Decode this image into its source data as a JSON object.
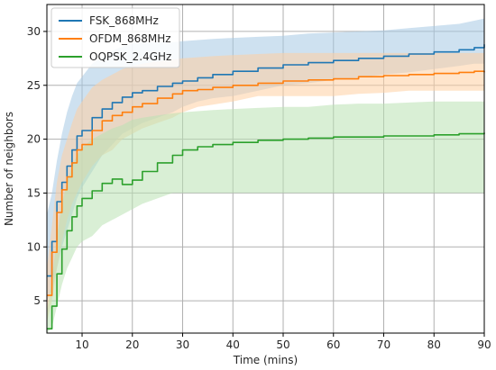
{
  "chart_data": {
    "type": "line",
    "xlabel": "Time (mins)",
    "ylabel": "Number of neighbors",
    "xlim": [
      3,
      90
    ],
    "ylim": [
      2,
      32.5
    ],
    "xticks": [
      10,
      20,
      30,
      40,
      50,
      60,
      70,
      80,
      90
    ],
    "yticks": [
      5,
      10,
      15,
      20,
      25,
      30
    ],
    "grid": true,
    "legend_position": "upper-left",
    "series": [
      {
        "name": "FSK_868MHz",
        "color": "#1f77b4",
        "band_color": "#a6c8e4",
        "x": [
          3,
          4,
          5,
          6,
          7,
          8,
          9,
          10,
          12,
          14,
          16,
          18,
          20,
          22,
          25,
          28,
          30,
          33,
          36,
          40,
          45,
          50,
          55,
          60,
          65,
          70,
          75,
          80,
          85,
          88,
          90
        ],
        "y": [
          7.3,
          10.5,
          14.2,
          16.0,
          17.5,
          19.0,
          20.3,
          20.8,
          22.0,
          22.8,
          23.4,
          23.9,
          24.3,
          24.5,
          24.9,
          25.2,
          25.4,
          25.7,
          26.0,
          26.3,
          26.6,
          26.9,
          27.1,
          27.3,
          27.5,
          27.7,
          27.9,
          28.1,
          28.3,
          28.5,
          28.8
        ],
        "upper": [
          13.0,
          15.0,
          18.0,
          20.5,
          22.5,
          24.0,
          25.2,
          25.8,
          27.0,
          27.6,
          28.2,
          28.6,
          28.9,
          29.0,
          29.0,
          29.0,
          29.1,
          29.2,
          29.3,
          29.4,
          29.5,
          29.6,
          29.8,
          29.9,
          30.0,
          30.1,
          30.3,
          30.5,
          30.7,
          31.0,
          31.2
        ],
        "lower": [
          5.0,
          6.0,
          8.0,
          10.0,
          11.5,
          13.0,
          14.5,
          15.5,
          17.0,
          18.5,
          19.5,
          20.5,
          21.0,
          21.5,
          22.0,
          22.5,
          23.0,
          23.5,
          23.8,
          24.0,
          24.5,
          25.0,
          25.2,
          25.5,
          25.7,
          26.0,
          26.2,
          26.5,
          26.8,
          27.0,
          27.0
        ]
      },
      {
        "name": "OFDM_868MHz",
        "color": "#ff7f0e",
        "band_color": "#ffcfa3",
        "x": [
          3,
          4,
          5,
          6,
          7,
          8,
          9,
          10,
          12,
          14,
          16,
          18,
          20,
          22,
          25,
          28,
          30,
          33,
          36,
          40,
          45,
          50,
          55,
          60,
          65,
          70,
          75,
          80,
          85,
          88,
          90
        ],
        "y": [
          5.5,
          9.5,
          13.2,
          15.3,
          16.5,
          17.8,
          19.0,
          19.5,
          20.8,
          21.7,
          22.2,
          22.5,
          23.0,
          23.3,
          23.8,
          24.2,
          24.5,
          24.6,
          24.8,
          25.0,
          25.2,
          25.4,
          25.5,
          25.6,
          25.8,
          25.9,
          26.0,
          26.1,
          26.2,
          26.3,
          26.2
        ],
        "upper": [
          8.0,
          12.0,
          16.0,
          18.5,
          20.0,
          21.5,
          22.8,
          23.5,
          24.8,
          25.5,
          26.0,
          26.5,
          26.8,
          27.0,
          27.2,
          27.4,
          27.5,
          27.6,
          27.7,
          27.8,
          27.9,
          28.0,
          28.0,
          28.0,
          28.0,
          28.0,
          28.0,
          28.0,
          28.0,
          28.0,
          28.0
        ],
        "lower": [
          3.0,
          5.0,
          8.0,
          10.5,
          12.5,
          14.0,
          15.0,
          16.0,
          17.5,
          18.5,
          19.0,
          20.0,
          20.5,
          21.0,
          21.5,
          22.0,
          22.5,
          23.0,
          23.2,
          23.5,
          24.0,
          24.0,
          24.0,
          24.0,
          24.2,
          24.3,
          24.5,
          24.5,
          24.5,
          24.5,
          24.5
        ]
      },
      {
        "name": "OQPSK_2.4GHz",
        "color": "#2ca02c",
        "band_color": "#b9e2b2",
        "x": [
          3,
          4,
          5,
          6,
          7,
          8,
          9,
          10,
          12,
          14,
          16,
          18,
          20,
          22,
          25,
          28,
          30,
          33,
          36,
          40,
          45,
          50,
          55,
          60,
          65,
          70,
          75,
          80,
          85,
          88,
          90
        ],
        "y": [
          2.4,
          4.5,
          7.5,
          9.8,
          11.5,
          12.8,
          13.8,
          14.5,
          15.2,
          15.9,
          16.3,
          15.8,
          16.2,
          17.0,
          17.8,
          18.5,
          19.0,
          19.3,
          19.5,
          19.7,
          19.9,
          20.0,
          20.1,
          20.2,
          20.2,
          20.3,
          20.3,
          20.4,
          20.5,
          20.5,
          20.6
        ],
        "upper": [
          4.0,
          7.0,
          11.0,
          14.0,
          16.0,
          17.5,
          18.5,
          19.2,
          20.0,
          20.5,
          21.0,
          21.3,
          21.8,
          22.0,
          22.2,
          22.4,
          22.5,
          22.6,
          22.7,
          22.8,
          22.9,
          23.0,
          23.0,
          23.2,
          23.3,
          23.3,
          23.4,
          23.5,
          23.5,
          23.5,
          23.5
        ],
        "lower": [
          2.0,
          2.5,
          4.5,
          6.5,
          8.0,
          9.0,
          10.0,
          10.5,
          11.0,
          12.0,
          12.5,
          13.0,
          13.5,
          14.0,
          14.5,
          15.0,
          15.0,
          15.0,
          15.0,
          15.0,
          15.0,
          15.0,
          15.0,
          15.0,
          15.0,
          15.0,
          15.0,
          15.0,
          15.0,
          15.0,
          15.0
        ]
      }
    ]
  }
}
